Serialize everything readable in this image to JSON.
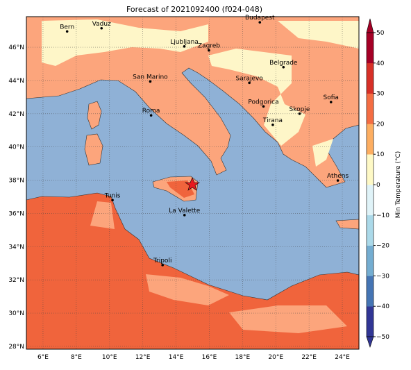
{
  "title": "Forecast of 2021092400 (f024-048)",
  "map": {
    "lonlim": [
      5,
      25
    ],
    "latlim": [
      27.83,
      47.84
    ],
    "xticks": [
      {
        "value": 6,
        "label": "6°E"
      },
      {
        "value": 8,
        "label": "8°E"
      },
      {
        "value": 10,
        "label": "10°E"
      },
      {
        "value": 12,
        "label": "12°E"
      },
      {
        "value": 14,
        "label": "14°E"
      },
      {
        "value": 16,
        "label": "16°E"
      },
      {
        "value": 18,
        "label": "18°E"
      },
      {
        "value": 20,
        "label": "20°E"
      },
      {
        "value": 22,
        "label": "22°E"
      },
      {
        "value": 24,
        "label": "24°E"
      }
    ],
    "yticks": [
      {
        "value": 28,
        "label": "28°N"
      },
      {
        "value": 30,
        "label": "30°N"
      },
      {
        "value": 32,
        "label": "32°N"
      },
      {
        "value": 34,
        "label": "34°N"
      },
      {
        "value": 36,
        "label": "36°N"
      },
      {
        "value": 38,
        "label": "38°N"
      },
      {
        "value": 40,
        "label": "40°N"
      },
      {
        "value": 42,
        "label": "42°N"
      },
      {
        "value": 44,
        "label": "44°N"
      },
      {
        "value": 46,
        "label": "46°N"
      }
    ],
    "cities": [
      {
        "name": "Bern",
        "lon": 7.45,
        "lat": 46.95
      },
      {
        "name": "Vaduz",
        "lon": 9.52,
        "lat": 47.14
      },
      {
        "name": "Budapest",
        "lon": 19.04,
        "lat": 47.5
      },
      {
        "name": "Ljubljana",
        "lon": 14.5,
        "lat": 46.05
      },
      {
        "name": "Zagreb",
        "lon": 15.98,
        "lat": 45.81
      },
      {
        "name": "Belgrade",
        "lon": 20.46,
        "lat": 44.8
      },
      {
        "name": "Sarajevo",
        "lon": 18.41,
        "lat": 43.86
      },
      {
        "name": "San Marino",
        "lon": 12.45,
        "lat": 43.94
      },
      {
        "name": "Sofia",
        "lon": 23.32,
        "lat": 42.7
      },
      {
        "name": "Podgorica",
        "lon": 19.26,
        "lat": 42.44
      },
      {
        "name": "Skopje",
        "lon": 21.43,
        "lat": 42.0
      },
      {
        "name": "Roma",
        "lon": 12.5,
        "lat": 41.9
      },
      {
        "name": "Tirana",
        "lon": 19.82,
        "lat": 41.33
      },
      {
        "name": "Athens",
        "lon": 23.73,
        "lat": 37.98
      },
      {
        "name": "Tunis",
        "lon": 10.18,
        "lat": 36.8
      },
      {
        "name": "La Valette",
        "lon": 14.51,
        "lat": 35.9
      },
      {
        "name": "Tripoli",
        "lon": 13.19,
        "lat": 32.89
      }
    ]
  },
  "colorbar": {
    "label": "Min Temperature (°C)",
    "lim": [
      -50,
      50
    ],
    "ticks": [
      {
        "value": -50,
        "label": "−50"
      },
      {
        "value": -40,
        "label": "−40"
      },
      {
        "value": -30,
        "label": "−30"
      },
      {
        "value": -20,
        "label": "−20"
      },
      {
        "value": -10,
        "label": "−10"
      },
      0,
      10,
      20,
      30,
      40,
      50
    ],
    "colors": [
      "#313695",
      "#4575b4",
      "#74add1",
      "#abd9e9",
      "#e0f3f8",
      "#fef9c6",
      "#fdae61",
      "#f46d43",
      "#d73027",
      "#a50026"
    ]
  }
}
